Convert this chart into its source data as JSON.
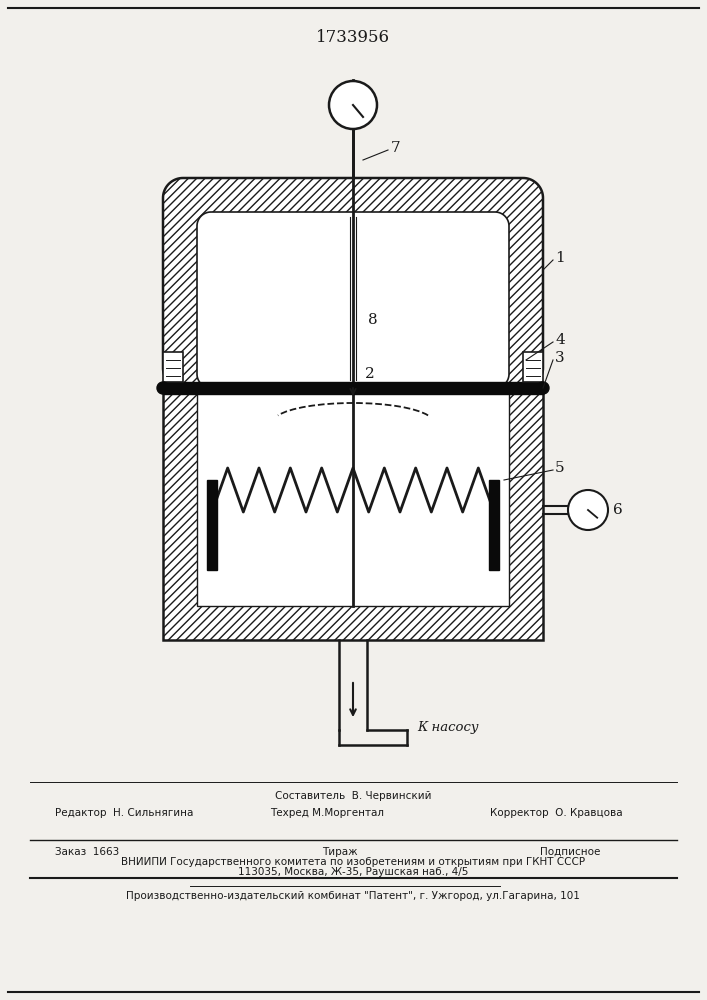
{
  "patent_number": "1733956",
  "bg_color": "#f2f0ec",
  "line_color": "#1a1a1a",
  "label1": "1",
  "label2": "2",
  "label3": "3",
  "label4": "4",
  "label5": "5",
  "label6": "6",
  "label7": "7",
  "label8": "8",
  "pump_label": "К насосу",
  "editor_line": "Редактор  Н. Сильнягина",
  "compiler_line": "Составитель  В. Червинский",
  "techred_line": "Техред М.Моргентал",
  "corrector_line": "Корректор  О. Кравцова",
  "order_line": "Заказ  1663",
  "tirazh_line": "Тираж",
  "podpisnoe_line": "Подписное",
  "vniiipi_line1": "ВНИИПИ Государственного комитета по изобретениям и открытиям при ГКНТ СССР",
  "vniiipi_line2": "113035, Москва, Ж-35, Раушская наб., 4/5",
  "patent_line": "Производственно-издательский комбинат \"Патент\", г. Ужгород, ул.Гагарина, 101"
}
